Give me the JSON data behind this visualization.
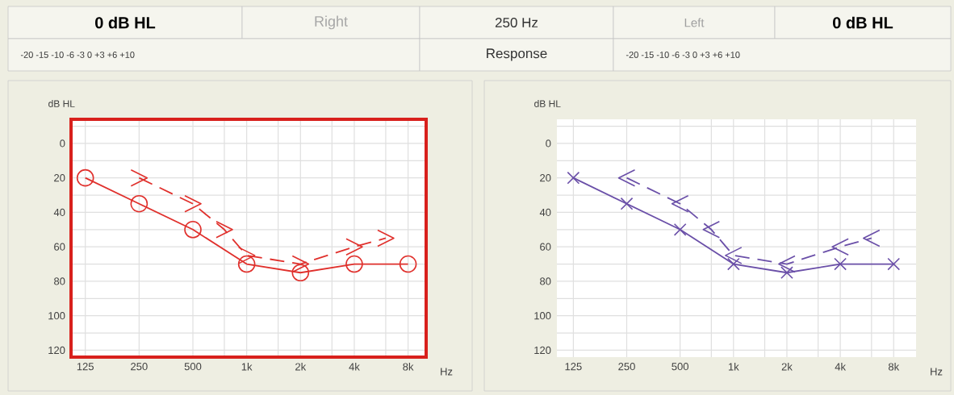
{
  "chart_data": [
    {
      "type": "other",
      "annotations": [
        "0 dB HL",
        "Right",
        "250 Hz",
        "Left",
        "0 dB HL",
        "-20  -15  -10  -6  -3  0  +3 +6  +10",
        "Response",
        "-20  -15  -10  -6  -3  0  +3 +6  +10"
      ]
    },
    {
      "type": "line",
      "ylabel": "dB HL",
      "xlabel": "Hz",
      "log": "x",
      "grid": true,
      "xlim": [
        104,
        10100
      ],
      "ylim": [
        124,
        -14
      ],
      "xticks": [
        {
          "value": 125,
          "label": "125"
        },
        {
          "value": 250,
          "label": "250"
        },
        {
          "value": 500,
          "label": "500"
        },
        {
          "value": 750,
          "label": null
        },
        {
          "value": 1000,
          "label": "1k"
        },
        {
          "value": 1500,
          "label": null
        },
        {
          "value": 2000,
          "label": "2k"
        },
        {
          "value": 3000,
          "label": null
        },
        {
          "value": 4000,
          "label": "4k"
        },
        {
          "value": 6000,
          "label": null
        },
        {
          "value": 8000,
          "label": "8k"
        }
      ],
      "yticks": [
        {
          "value": -10,
          "label": null
        },
        0,
        {
          "value": 10,
          "label": null
        },
        20,
        {
          "value": 30,
          "label": null
        },
        40,
        {
          "value": 50,
          "label": null
        },
        60,
        {
          "value": 70,
          "label": null
        },
        80,
        {
          "value": 90,
          "label": null
        },
        100,
        {
          "value": 110,
          "label": null
        },
        120
      ],
      "series": [
        {
          "color": "#e0302c",
          "marker": "circle",
          "line_style": "solid",
          "x": [
            125,
            250,
            500,
            1000,
            2000,
            4000,
            8000
          ],
          "values": [
            20,
            35,
            50,
            70,
            75,
            70,
            70
          ]
        },
        {
          "color": "#e0302c",
          "marker": "cross",
          "line_style": "dashed",
          "x": [
            250,
            500,
            750,
            1000,
            2000,
            4000,
            6000
          ],
          "values": [
            20,
            35,
            50,
            65,
            70,
            60,
            55
          ]
        }
      ]
    },
    {
      "type": "line",
      "ylabel": "dB HL",
      "xlabel": "Hz",
      "log": "x",
      "grid": true,
      "xlim": [
        101,
        10700
      ],
      "ylim": [
        124,
        -14
      ],
      "xticks": [
        {
          "value": 125,
          "label": "125"
        },
        {
          "value": 250,
          "label": "250"
        },
        {
          "value": 500,
          "label": "500"
        },
        {
          "value": 750,
          "label": null
        },
        {
          "value": 1000,
          "label": "1k"
        },
        {
          "value": 1500,
          "label": null
        },
        {
          "value": 2000,
          "label": "2k"
        },
        {
          "value": 3000,
          "label": null
        },
        {
          "value": 4000,
          "label": "4k"
        },
        {
          "value": 6000,
          "label": null
        },
        {
          "value": 8000,
          "label": "8k"
        }
      ],
      "yticks": [
        {
          "value": -10,
          "label": null
        },
        0,
        {
          "value": 10,
          "label": null
        },
        20,
        {
          "value": 30,
          "label": null
        },
        40,
        {
          "value": 50,
          "label": null
        },
        60,
        {
          "value": 70,
          "label": null
        },
        80,
        {
          "value": 90,
          "label": null
        },
        100,
        {
          "value": 110,
          "label": null
        },
        120
      ],
      "series": [
        {
          "color": "#6a4fa8",
          "marker": "cross",
          "line_style": "solid",
          "x": [
            125,
            250,
            500,
            1000,
            2000,
            4000,
            8000
          ],
          "values": [
            20,
            35,
            50,
            70,
            75,
            70,
            70
          ]
        },
        {
          "color": "#6a4fa8",
          "marker": "cross",
          "line_style": "dashed",
          "x": [
            250,
            500,
            750,
            1000,
            2000,
            4000,
            6000
          ],
          "values": [
            20,
            35,
            50,
            65,
            70,
            60,
            55
          ]
        }
      ]
    }
  ]
}
